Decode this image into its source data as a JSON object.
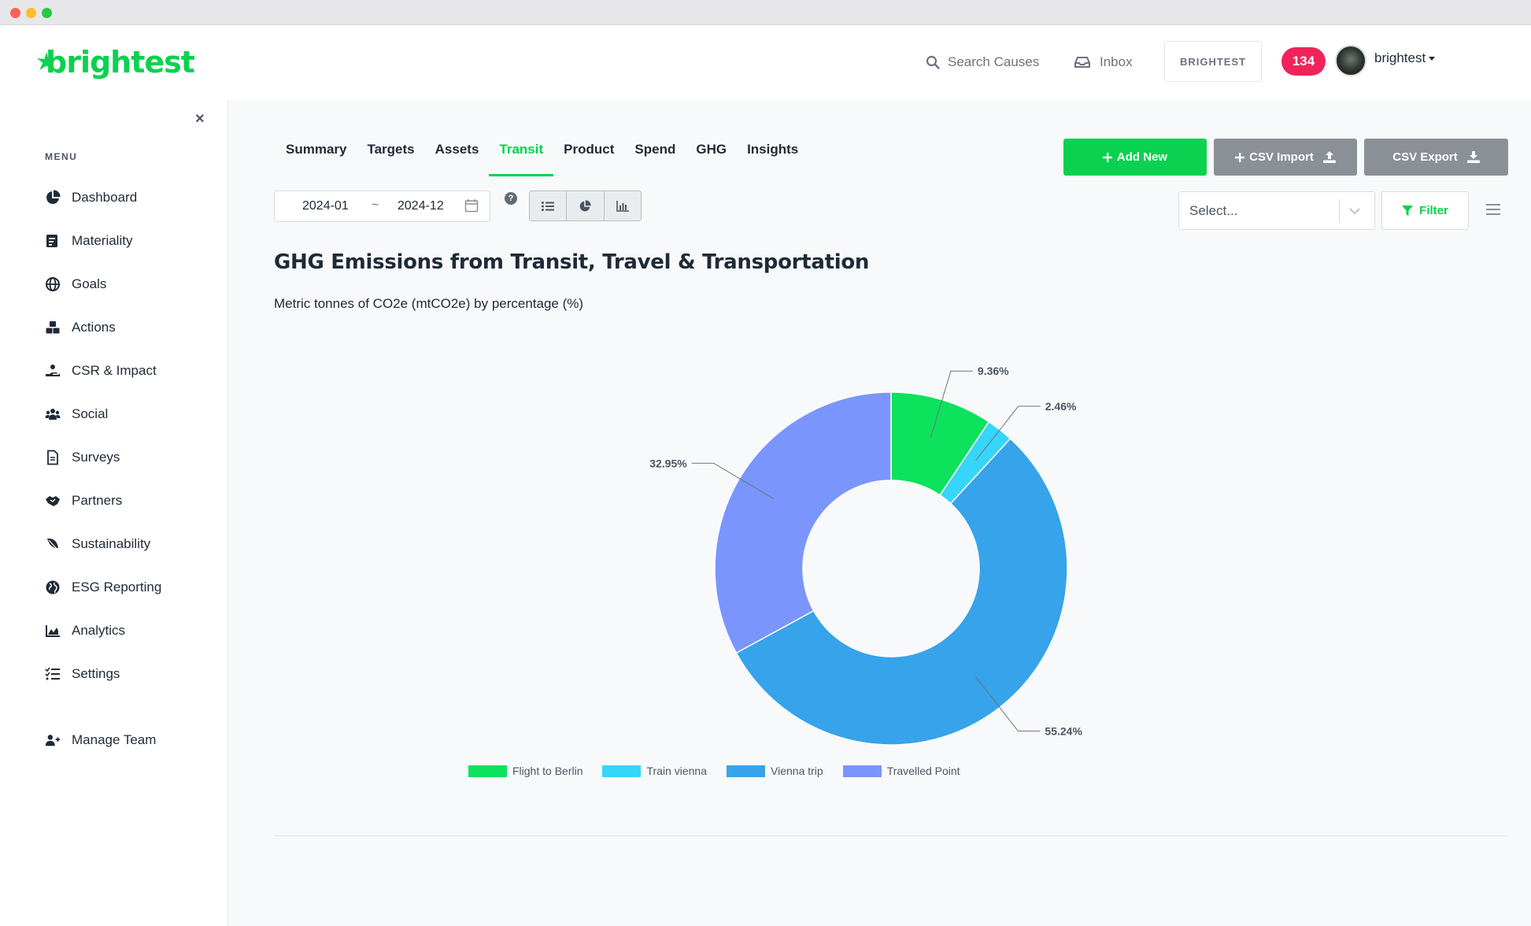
{
  "header": {
    "brand": "brightest",
    "search_label": "Search Causes",
    "inbox_label": "Inbox",
    "org_button": "BRIGHTEST",
    "notification_count": "134",
    "user_name": "brightest"
  },
  "sidebar": {
    "menu_label": "MENU",
    "items": [
      {
        "label": "Dashboard",
        "icon": "pie-chart-icon"
      },
      {
        "label": "Materiality",
        "icon": "document-chart-icon"
      },
      {
        "label": "Goals",
        "icon": "globe-icon"
      },
      {
        "label": "Actions",
        "icon": "cubes-icon"
      },
      {
        "label": "CSR & Impact",
        "icon": "hand-holding-icon"
      },
      {
        "label": "Social",
        "icon": "users-icon"
      },
      {
        "label": "Surveys",
        "icon": "file-icon"
      },
      {
        "label": "Partners",
        "icon": "handshake-icon"
      },
      {
        "label": "Sustainability",
        "icon": "leaf-icon"
      },
      {
        "label": "ESG Reporting",
        "icon": "earth-icon"
      },
      {
        "label": "Analytics",
        "icon": "area-chart-icon"
      },
      {
        "label": "Settings",
        "icon": "list-check-icon"
      }
    ],
    "manage_team": "Manage Team"
  },
  "tabs": [
    {
      "label": "Summary",
      "active": false
    },
    {
      "label": "Targets",
      "active": false
    },
    {
      "label": "Assets",
      "active": false
    },
    {
      "label": "Transit",
      "active": true
    },
    {
      "label": "Product",
      "active": false
    },
    {
      "label": "Spend",
      "active": false
    },
    {
      "label": "GHG",
      "active": false
    },
    {
      "label": "Insights",
      "active": false
    }
  ],
  "actions": {
    "add_new": "Add New",
    "csv_import": "CSV Import",
    "csv_export": "CSV Export"
  },
  "toolbar": {
    "date_from": "2024-01",
    "date_separator": "~",
    "date_to": "2024-12",
    "help": "?",
    "select_placeholder": "Select...",
    "filter_label": "Filter"
  },
  "colors": {
    "brand_green": "#0ad14f",
    "badge_red": "#f0245a",
    "secondary_gray": "#8a9096"
  },
  "main": {
    "title": "GHG Emissions from Transit, Travel & Transportation",
    "subtitle": "Metric tonnes of CO2e (mtCO2e) by percentage (%)"
  },
  "chart_data": {
    "type": "pie",
    "donut": true,
    "unit": "%",
    "legend_position": "bottom",
    "slices": [
      {
        "label": "Flight to Berlin",
        "value": 9.36,
        "display": "9.36%",
        "color": "#0ce25b"
      },
      {
        "label": "Train vienna",
        "value": 2.46,
        "display": "2.46%",
        "color": "#37d5fa"
      },
      {
        "label": "Vienna trip",
        "value": 55.24,
        "display": "55.24%",
        "color": "#37a3ea"
      },
      {
        "label": "Travelled Point",
        "value": 32.95,
        "display": "32.95%",
        "color": "#7a95fd"
      }
    ]
  }
}
